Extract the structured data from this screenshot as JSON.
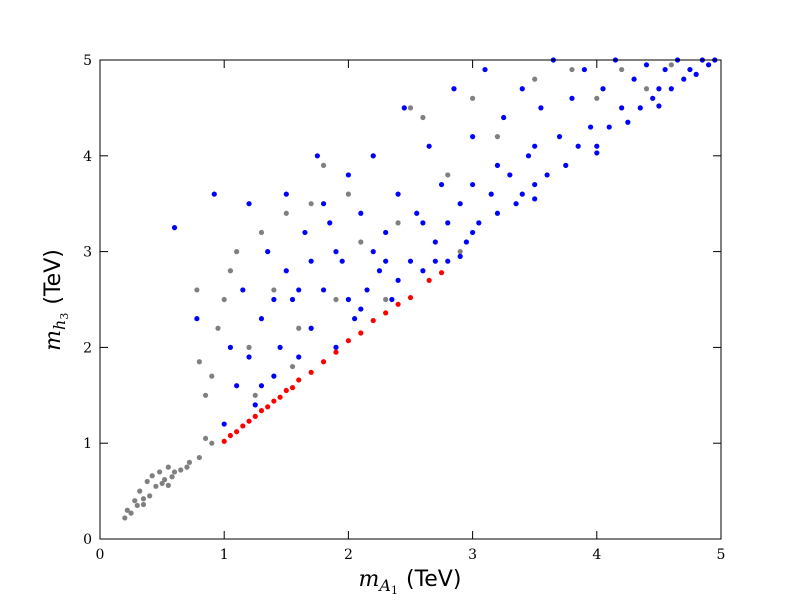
{
  "chart_data": {
    "type": "scatter",
    "xlabel": [
      "m",
      "A",
      "1",
      "(TeV)"
    ],
    "ylabel": [
      "m",
      "h",
      "3",
      "(TeV)"
    ],
    "xlim": [
      0,
      5
    ],
    "ylim": [
      0,
      5
    ],
    "xticks": [
      0,
      1,
      2,
      3,
      4,
      5
    ],
    "yticks": [
      0,
      1,
      2,
      3,
      4,
      5
    ],
    "series": [
      {
        "color": "#808080",
        "x": [
          0.2,
          0.22,
          0.25,
          0.28,
          0.3,
          0.32,
          0.35,
          0.38,
          0.4,
          0.42,
          0.45,
          0.48,
          0.5,
          0.52,
          0.55,
          0.58,
          0.6,
          0.65,
          0.7,
          0.72,
          0.8,
          0.85,
          0.9,
          0.85,
          0.8,
          0.78,
          0.95,
          0.9,
          1.0,
          1.05,
          1.1,
          1.2,
          1.3,
          1.4,
          1.5,
          1.6,
          1.7,
          1.8,
          1.9,
          2.0,
          2.1,
          2.2,
          2.4,
          2.5,
          2.6,
          2.8,
          3.0,
          3.2,
          3.5,
          3.8,
          4.0,
          4.2,
          4.4,
          4.6,
          0.55,
          0.35,
          1.25,
          1.55,
          2.3,
          2.9
        ],
        "y": [
          0.22,
          0.3,
          0.27,
          0.4,
          0.35,
          0.5,
          0.42,
          0.6,
          0.45,
          0.66,
          0.55,
          0.7,
          0.58,
          0.62,
          0.75,
          0.65,
          0.7,
          0.72,
          0.75,
          0.8,
          0.85,
          1.05,
          1.0,
          1.5,
          1.85,
          2.6,
          2.2,
          1.7,
          2.5,
          2.8,
          3.0,
          2.0,
          3.2,
          2.6,
          3.4,
          2.2,
          3.5,
          3.9,
          2.5,
          3.6,
          3.1,
          4.0,
          3.3,
          4.5,
          4.4,
          3.8,
          4.6,
          4.2,
          4.8,
          4.9,
          4.6,
          4.9,
          4.7,
          4.95,
          0.56,
          0.36,
          1.5,
          1.8,
          2.5,
          3.0
        ]
      },
      {
        "color": "#0000ff",
        "x": [
          0.6,
          0.78,
          0.92,
          1.0,
          1.05,
          1.1,
          1.15,
          1.2,
          1.25,
          1.3,
          1.35,
          1.4,
          1.45,
          1.5,
          1.55,
          1.6,
          1.65,
          1.7,
          1.75,
          1.8,
          1.85,
          1.9,
          1.95,
          2.0,
          2.05,
          2.1,
          2.15,
          2.2,
          2.25,
          2.3,
          2.35,
          2.4,
          2.45,
          2.5,
          2.55,
          2.6,
          2.65,
          2.7,
          2.75,
          2.8,
          2.85,
          2.9,
          2.95,
          3.0,
          3.05,
          3.1,
          3.15,
          3.2,
          3.25,
          3.3,
          3.35,
          3.4,
          3.45,
          3.5,
          3.55,
          3.6,
          3.65,
          3.7,
          3.75,
          3.8,
          3.85,
          3.9,
          3.95,
          4.0,
          4.05,
          4.1,
          4.15,
          4.2,
          4.25,
          4.3,
          4.35,
          4.4,
          4.45,
          4.5,
          4.55,
          4.6,
          4.65,
          4.7,
          4.75,
          4.8,
          4.85,
          4.9,
          4.95,
          1.5,
          1.8,
          2.0,
          2.2,
          2.4,
          2.6,
          2.8,
          3.0,
          3.2,
          3.4,
          2.1,
          1.7,
          1.4,
          1.3,
          1.9,
          2.3,
          2.7,
          3.5,
          3.0,
          1.2,
          1.6,
          3.5,
          4.0,
          2.9,
          4.5
        ],
        "y": [
          3.25,
          2.3,
          3.6,
          1.2,
          2.0,
          1.6,
          2.6,
          3.5,
          1.4,
          2.3,
          3.0,
          1.7,
          2.0,
          3.6,
          2.5,
          1.9,
          3.2,
          2.2,
          4.0,
          2.6,
          3.3,
          2.0,
          2.9,
          3.8,
          2.3,
          3.4,
          2.6,
          4.0,
          2.8,
          3.2,
          2.5,
          3.6,
          4.5,
          2.9,
          3.4,
          2.8,
          4.1,
          3.1,
          3.7,
          2.9,
          4.7,
          3.5,
          3.1,
          4.2,
          3.3,
          4.9,
          3.6,
          3.4,
          4.4,
          3.8,
          3.5,
          4.7,
          4.0,
          3.7,
          4.5,
          3.8,
          5.0,
          4.2,
          3.9,
          4.6,
          4.1,
          4.9,
          4.3,
          4.1,
          4.7,
          4.3,
          5.0,
          4.5,
          4.35,
          4.8,
          4.5,
          4.95,
          4.6,
          4.7,
          4.9,
          4.7,
          5.0,
          4.8,
          4.9,
          4.85,
          5.0,
          4.95,
          5.0,
          2.8,
          3.5,
          2.5,
          3.0,
          2.7,
          3.3,
          3.3,
          3.2,
          3.9,
          3.6,
          2.4,
          2.9,
          2.5,
          1.6,
          3.0,
          2.9,
          2.9,
          4.1,
          3.7,
          1.9,
          2.6,
          3.55,
          4.03,
          2.95,
          4.52
        ]
      },
      {
        "color": "#ff0000",
        "x": [
          1.0,
          1.05,
          1.1,
          1.15,
          1.2,
          1.25,
          1.3,
          1.35,
          1.4,
          1.45,
          1.5,
          1.55,
          1.6,
          1.7,
          1.8,
          1.9,
          2.0,
          2.1,
          2.2,
          2.3,
          2.4,
          2.5,
          2.65,
          2.75
        ],
        "y": [
          1.02,
          1.08,
          1.12,
          1.18,
          1.23,
          1.28,
          1.34,
          1.38,
          1.44,
          1.48,
          1.55,
          1.58,
          1.66,
          1.74,
          1.85,
          1.95,
          2.07,
          2.15,
          2.28,
          2.36,
          2.45,
          2.52,
          2.7,
          2.78
        ]
      }
    ]
  }
}
